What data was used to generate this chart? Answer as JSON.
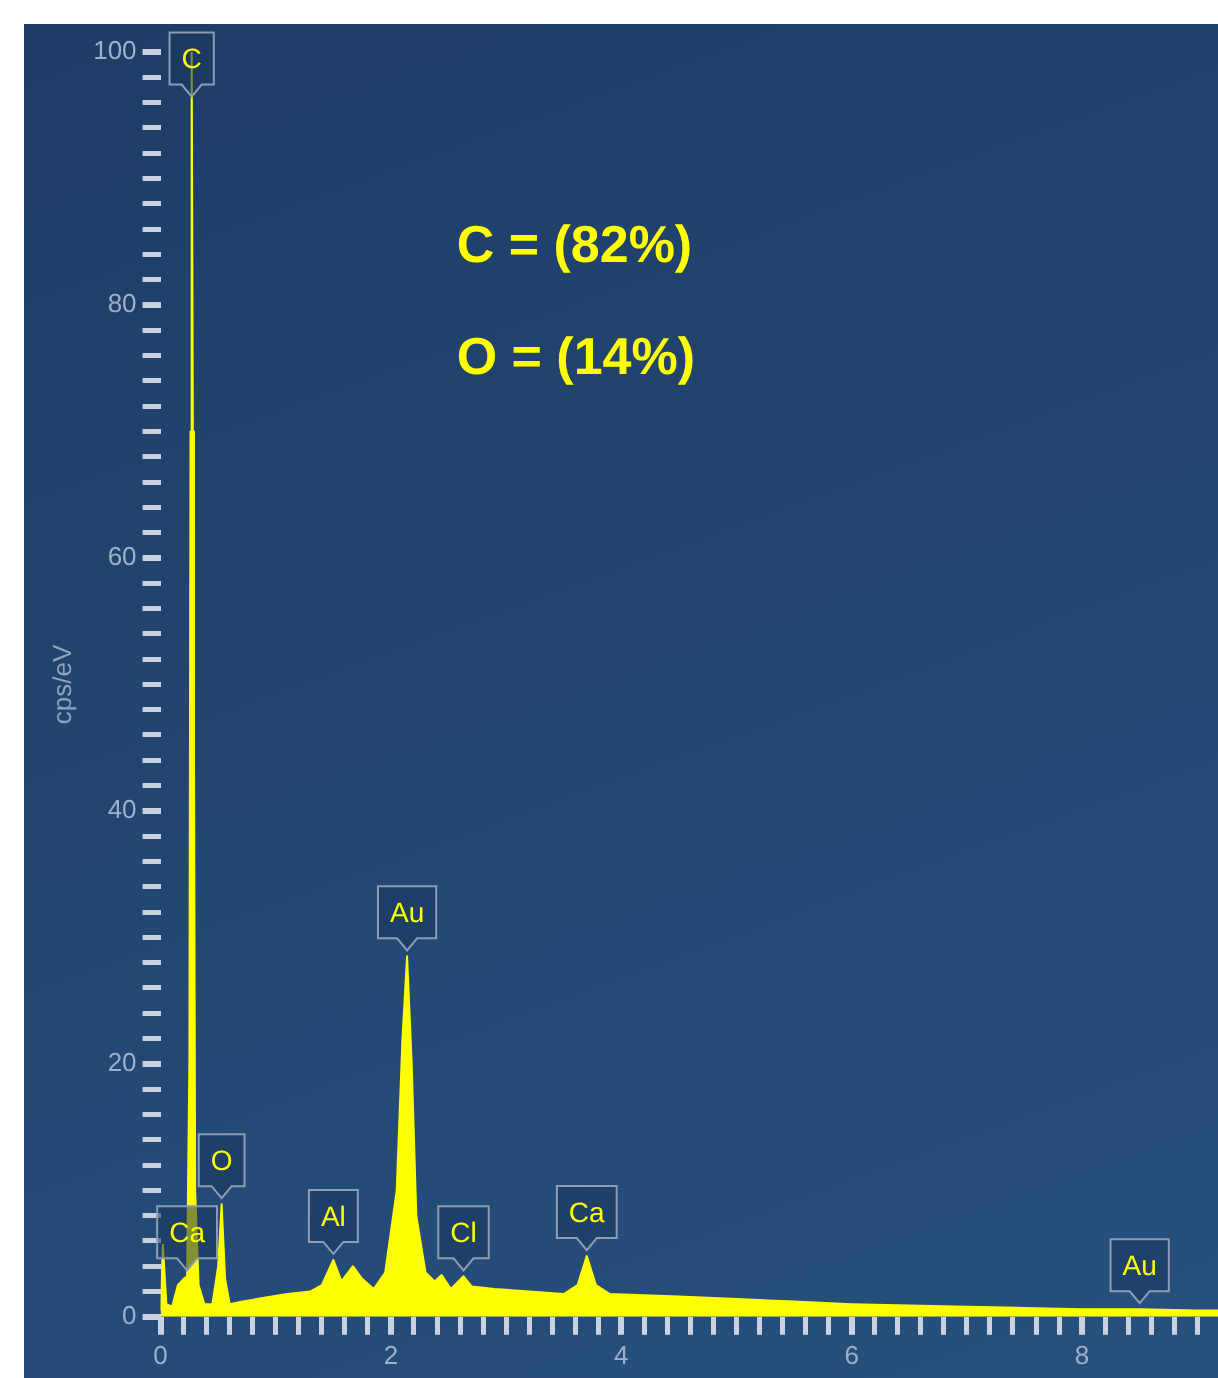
{
  "chart_data": {
    "type": "area",
    "ylabel": "cps/eV",
    "color": "#ffff00",
    "x": [
      0,
      0.02,
      0.05,
      0.1,
      0.15,
      0.2,
      0.23,
      0.25,
      0.26,
      0.27,
      0.28,
      0.29,
      0.3,
      0.33,
      0.38,
      0.45,
      0.5,
      0.53,
      0.56,
      0.6,
      0.7,
      0.9,
      1.1,
      1.3,
      1.4,
      1.5,
      1.57,
      1.67,
      1.75,
      1.85,
      1.95,
      2.05,
      2.1,
      2.14,
      2.18,
      2.22,
      2.3,
      2.38,
      2.44,
      2.52,
      2.63,
      2.7,
      2.9,
      3.2,
      3.5,
      3.62,
      3.7,
      3.78,
      3.9,
      4.5,
      5,
      5.5,
      6,
      6.5,
      7,
      7.5,
      8,
      8.5,
      9,
      9.18
    ],
    "values": [
      0.5,
      5.7,
      1,
      0.8,
      2.5,
      3,
      3.2,
      20,
      70,
      100,
      70,
      45,
      10,
      2.5,
      1,
      1,
      4,
      8.9,
      3,
      1,
      1.2,
      1.5,
      1.8,
      2,
      2.5,
      4.5,
      2.8,
      4,
      3,
      2.2,
      3.5,
      10,
      22,
      28.5,
      20,
      8,
      3.5,
      2.8,
      3.3,
      2.2,
      3.2,
      2.4,
      2.2,
      2,
      1.8,
      2.5,
      4.8,
      2.5,
      1.8,
      1.6,
      1.4,
      1.2,
      1,
      0.9,
      0.8,
      0.7,
      0.6,
      0.6,
      0.5,
      0.5
    ],
    "xlim": [
      0,
      9.18
    ],
    "ylim": [
      0,
      100
    ],
    "xticks": [
      0,
      {
        "value": 0.2,
        "label": null
      },
      {
        "value": 0.4,
        "label": null
      },
      {
        "value": 0.6,
        "label": null
      },
      {
        "value": 0.8,
        "label": null
      },
      {
        "value": 1,
        "label": null
      },
      {
        "value": 1.2,
        "label": null
      },
      {
        "value": 1.4,
        "label": null
      },
      {
        "value": 1.6,
        "label": null
      },
      {
        "value": 1.8,
        "label": null
      },
      2,
      {
        "value": 2.2,
        "label": null
      },
      {
        "value": 2.4,
        "label": null
      },
      {
        "value": 2.6,
        "label": null
      },
      {
        "value": 2.8,
        "label": null
      },
      {
        "value": 3,
        "label": null
      },
      {
        "value": 3.2,
        "label": null
      },
      {
        "value": 3.4,
        "label": null
      },
      {
        "value": 3.6,
        "label": null
      },
      {
        "value": 3.8,
        "label": null
      },
      4,
      {
        "value": 4.2,
        "label": null
      },
      {
        "value": 4.4,
        "label": null
      },
      {
        "value": 4.6,
        "label": null
      },
      {
        "value": 4.8,
        "label": null
      },
      {
        "value": 5,
        "label": null
      },
      {
        "value": 5.2,
        "label": null
      },
      {
        "value": 5.4,
        "label": null
      },
      {
        "value": 5.6,
        "label": null
      },
      {
        "value": 5.8,
        "label": null
      },
      6,
      {
        "value": 6.2,
        "label": null
      },
      {
        "value": 6.4,
        "label": null
      },
      {
        "value": 6.6,
        "label": null
      },
      {
        "value": 6.8,
        "label": null
      },
      {
        "value": 7,
        "label": null
      },
      {
        "value": 7.2,
        "label": null
      },
      {
        "value": 7.4,
        "label": null
      },
      {
        "value": 7.6,
        "label": null
      },
      {
        "value": 7.8,
        "label": null
      },
      8,
      {
        "value": 8.2,
        "label": null
      },
      {
        "value": 8.4,
        "label": null
      },
      {
        "value": 8.6,
        "label": null
      },
      {
        "value": 8.8,
        "label": null
      },
      {
        "value": 9,
        "label": null
      }
    ],
    "yticks": [
      0,
      {
        "value": 2,
        "label": null
      },
      {
        "value": 4,
        "label": null
      },
      {
        "value": 6,
        "label": null
      },
      {
        "value": 8,
        "label": null
      },
      {
        "value": 10,
        "label": null
      },
      {
        "value": 12,
        "label": null
      },
      {
        "value": 14,
        "label": null
      },
      {
        "value": 16,
        "label": null
      },
      {
        "value": 18,
        "label": null
      },
      20,
      {
        "value": 22,
        "label": null
      },
      {
        "value": 24,
        "label": null
      },
      {
        "value": 26,
        "label": null
      },
      {
        "value": 28,
        "label": null
      },
      {
        "value": 30,
        "label": null
      },
      {
        "value": 32,
        "label": null
      },
      {
        "value": 34,
        "label": null
      },
      {
        "value": 36,
        "label": null
      },
      {
        "value": 38,
        "label": null
      },
      40,
      {
        "value": 42,
        "label": null
      },
      {
        "value": 44,
        "label": null
      },
      {
        "value": 46,
        "label": null
      },
      {
        "value": 48,
        "label": null
      },
      {
        "value": 50,
        "label": null
      },
      {
        "value": 52,
        "label": null
      },
      {
        "value": 54,
        "label": null
      },
      {
        "value": 56,
        "label": null
      },
      {
        "value": 58,
        "label": null
      },
      60,
      {
        "value": 62,
        "label": null
      },
      {
        "value": 64,
        "label": null
      },
      {
        "value": 66,
        "label": null
      },
      {
        "value": 68,
        "label": null
      },
      {
        "value": 70,
        "label": null
      },
      {
        "value": 72,
        "label": null
      },
      {
        "value": 74,
        "label": null
      },
      {
        "value": 76,
        "label": null
      },
      {
        "value": 78,
        "label": null
      },
      80,
      {
        "value": 82,
        "label": null
      },
      {
        "value": 84,
        "label": null
      },
      {
        "value": 86,
        "label": null
      },
      {
        "value": 88,
        "label": null
      },
      {
        "value": 90,
        "label": null
      },
      {
        "value": 92,
        "label": null
      },
      {
        "value": 94,
        "label": null
      },
      {
        "value": 96,
        "label": null
      },
      {
        "value": 98,
        "label": null
      },
      100
    ],
    "annotations": [
      "C = (82%)",
      "O = (14%)",
      {
        "text": "C",
        "x": 0.27,
        "y": 96
      },
      {
        "text": "Ca",
        "x": 0.23,
        "y": 3.2
      },
      {
        "text": "O",
        "x": 0.53,
        "y": 8.9
      },
      {
        "text": "Al",
        "x": 1.5,
        "y": 4.5
      },
      {
        "text": "Au",
        "x": 2.14,
        "y": 28.5
      },
      {
        "text": "Cl",
        "x": 2.63,
        "y": 3.2
      },
      {
        "text": "Ca",
        "x": 3.7,
        "y": 4.8
      },
      {
        "text": "Au",
        "x": 8.5,
        "y": 0.6
      }
    ]
  }
}
